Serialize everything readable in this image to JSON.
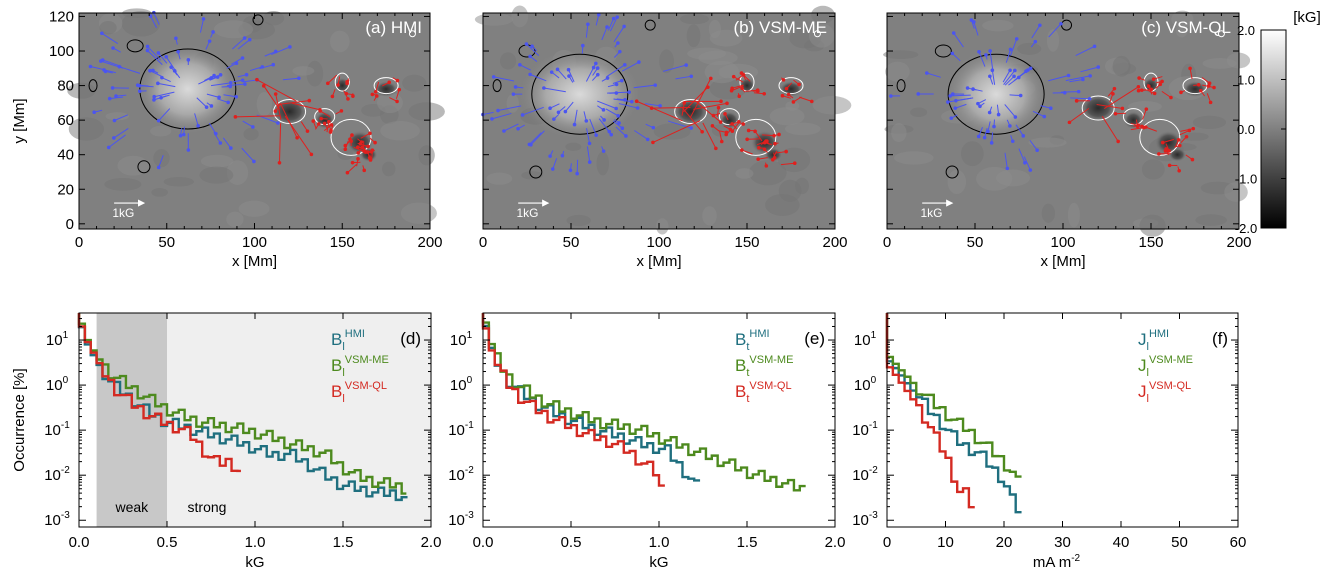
{
  "colors": {
    "hmi": "#1f6f7f",
    "vsm_me": "#4d8a1e",
    "vsm_ql": "#d42a22",
    "positive_arrows": "#e0201e",
    "negative_arrows": "#4b55f0",
    "background_field": "#808080",
    "weak_band": "#c8c8c8",
    "strong_band": "#efefef"
  },
  "chart_data": [
    {
      "type": "heatmap",
      "panel_label": "(a) HMI",
      "xlabel": "x [Mm]",
      "ylabel": "y [Mm]",
      "xlim": [
        0,
        200
      ],
      "ylim": [
        -3,
        122
      ],
      "x_ticks": [
        "0",
        "50",
        "100",
        "150",
        "200"
      ],
      "y_ticks": [
        "0",
        "20",
        "40",
        "60",
        "80",
        "100",
        "120"
      ],
      "scale_arrow_label": "1kG",
      "negative_region_center": [
        62,
        78
      ],
      "positive_region_center": [
        120,
        65
      ]
    },
    {
      "type": "heatmap",
      "panel_label": "(b) VSM-ME",
      "xlabel": "x [Mm]",
      "xlim": [
        0,
        200
      ],
      "ylim": [
        -3,
        122
      ],
      "x_ticks": [
        "0",
        "50",
        "100",
        "150",
        "200"
      ],
      "scale_arrow_label": "1kG",
      "negative_region_center": [
        55,
        75
      ],
      "positive_region_center": [
        118,
        65
      ]
    },
    {
      "type": "heatmap",
      "panel_label": "(c) VSM-QL",
      "xlabel": "x [Mm]",
      "xlim": [
        0,
        200
      ],
      "ylim": [
        -3,
        122
      ],
      "x_ticks": [
        "0",
        "50",
        "100",
        "150",
        "200"
      ],
      "scale_arrow_label": "1kG",
      "negative_region_center": [
        62,
        75
      ],
      "positive_region_center": [
        120,
        67
      ]
    },
    {
      "type": "colorbar",
      "unit": "[kG]",
      "range": [
        -2.0,
        2.0
      ],
      "ticks": [
        "2.0",
        "1.0",
        "0.0",
        "-1.0",
        "-2.0"
      ]
    },
    {
      "type": "line",
      "panel_label": "(d)",
      "xlabel": "kG",
      "ylabel": "Occurrence [%]",
      "xlim": [
        0,
        2.0
      ],
      "ylog": [
        -3.15,
        1.6
      ],
      "x_ticks": [
        "0.0",
        "0.5",
        "1.0",
        "1.5",
        "2.0"
      ],
      "y_ticks": [
        "10-3",
        "10-2",
        "10-1",
        "100",
        "101"
      ],
      "bands": [
        {
          "label": "weak",
          "from": 0.1,
          "to": 0.5
        },
        {
          "label": "strong",
          "from": 0.5,
          "to": 2.0
        }
      ],
      "legend": [
        {
          "base": "B",
          "sub": "l",
          "sup": "HMI"
        },
        {
          "base": "B",
          "sub": "l",
          "sup": "VSM-ME"
        },
        {
          "base": "B",
          "sub": "l",
          "sup": "VSM-QL"
        }
      ],
      "series": [
        {
          "x": [
            0.0,
            0.05,
            0.1,
            0.15,
            0.2,
            0.3,
            0.4,
            0.5,
            0.6,
            0.7,
            0.8,
            0.9,
            1.0,
            1.1,
            1.2,
            1.3,
            1.4,
            1.5,
            1.6,
            1.7,
            1.8,
            1.87
          ],
          "y": [
            30,
            8,
            3.5,
            1.8,
            1.0,
            0.5,
            0.25,
            0.15,
            0.12,
            0.09,
            0.07,
            0.055,
            0.04,
            0.028,
            0.03,
            0.018,
            0.01,
            0.006,
            0.005,
            0.004,
            0.004,
            0.003
          ]
        },
        {
          "x": [
            0.0,
            0.05,
            0.1,
            0.15,
            0.2,
            0.3,
            0.4,
            0.5,
            0.6,
            0.7,
            0.8,
            0.9,
            1.0,
            1.1,
            1.2,
            1.3,
            1.4,
            1.5,
            1.6,
            1.7,
            1.8,
            1.86
          ],
          "y": [
            35,
            10,
            4.5,
            2.5,
            1.6,
            0.9,
            0.5,
            0.3,
            0.2,
            0.15,
            0.13,
            0.11,
            0.09,
            0.07,
            0.05,
            0.04,
            0.03,
            0.015,
            0.009,
            0.007,
            0.006,
            0.005
          ]
        },
        {
          "x": [
            0.0,
            0.05,
            0.1,
            0.15,
            0.2,
            0.3,
            0.4,
            0.5,
            0.6,
            0.65,
            0.7,
            0.75,
            0.8,
            0.85,
            0.9,
            0.92
          ],
          "y": [
            30,
            9,
            4.0,
            1.8,
            0.9,
            0.4,
            0.22,
            0.14,
            0.1,
            0.07,
            0.04,
            0.025,
            0.018,
            0.02,
            0.015,
            0.012
          ]
        }
      ]
    },
    {
      "type": "line",
      "panel_label": "(e)",
      "xlabel": "kG",
      "xlim": [
        0,
        2.0
      ],
      "ylog": [
        -3.15,
        1.6
      ],
      "x_ticks": [
        "0.0",
        "0.5",
        "1.0",
        "1.5",
        "2.0"
      ],
      "y_ticks": [
        "10-3",
        "10-2",
        "10-1",
        "100",
        "101"
      ],
      "legend": [
        {
          "base": "B",
          "sub": "t",
          "sup": "HMI"
        },
        {
          "base": "B",
          "sub": "t",
          "sup": "VSM-ME"
        },
        {
          "base": "B",
          "sub": "t",
          "sup": "VSM-QL"
        }
      ],
      "series": [
        {
          "x": [
            0.0,
            0.03,
            0.06,
            0.1,
            0.15,
            0.2,
            0.3,
            0.4,
            0.5,
            0.6,
            0.7,
            0.8,
            0.9,
            1.0,
            1.05,
            1.1,
            1.15,
            1.2,
            1.25
          ],
          "y": [
            40,
            12,
            5,
            2.2,
            1.2,
            0.8,
            0.4,
            0.25,
            0.17,
            0.12,
            0.09,
            0.07,
            0.05,
            0.04,
            0.035,
            0.02,
            0.012,
            0.007,
            0.004
          ]
        },
        {
          "x": [
            0.0,
            0.03,
            0.06,
            0.1,
            0.15,
            0.2,
            0.3,
            0.4,
            0.5,
            0.6,
            0.7,
            0.8,
            0.9,
            1.0,
            1.1,
            1.2,
            1.3,
            1.4,
            1.5,
            1.6,
            1.7,
            1.8,
            1.84
          ],
          "y": [
            45,
            15,
            6,
            2.8,
            1.5,
            1.0,
            0.55,
            0.35,
            0.25,
            0.18,
            0.14,
            0.12,
            0.1,
            0.07,
            0.05,
            0.035,
            0.025,
            0.018,
            0.012,
            0.009,
            0.007,
            0.005,
            0.005
          ]
        },
        {
          "x": [
            0.0,
            0.03,
            0.06,
            0.1,
            0.15,
            0.2,
            0.3,
            0.4,
            0.5,
            0.6,
            0.7,
            0.8,
            0.85,
            0.9,
            0.95,
            1.0,
            1.04
          ],
          "y": [
            38,
            10,
            4.5,
            2.0,
            1.0,
            0.6,
            0.3,
            0.18,
            0.12,
            0.08,
            0.06,
            0.04,
            0.03,
            0.02,
            0.015,
            0.01,
            0.002
          ]
        }
      ]
    },
    {
      "type": "line",
      "panel_label": "(f)",
      "xlabel": "mA m-2",
      "xlim": [
        0,
        60
      ],
      "ylog": [
        -3.15,
        1.6
      ],
      "x_ticks": [
        "0",
        "10",
        "20",
        "30",
        "40",
        "50",
        "60"
      ],
      "y_ticks": [
        "10-3",
        "10-2",
        "10-1",
        "100",
        "101"
      ],
      "legend": [
        {
          "base": "J",
          "sub": "l",
          "sup": "HMI"
        },
        {
          "base": "J",
          "sub": "l",
          "sup": "VSM-ME"
        },
        {
          "base": "J",
          "sub": "l",
          "sup": "VSM-QL"
        }
      ],
      "series": [
        {
          "x": [
            0,
            2,
            4,
            6,
            8,
            10,
            12,
            14,
            16,
            18,
            20,
            21,
            22,
            23
          ],
          "y": [
            4,
            2.0,
            0.9,
            0.45,
            0.22,
            0.12,
            0.06,
            0.04,
            0.03,
            0.015,
            0.008,
            0.004,
            0.002,
            0.0015
          ]
        },
        {
          "x": [
            0,
            2,
            4,
            6,
            8,
            10,
            12,
            14,
            16,
            18,
            20,
            22,
            23
          ],
          "y": [
            5,
            2.5,
            1.3,
            0.7,
            0.4,
            0.25,
            0.15,
            0.1,
            0.06,
            0.035,
            0.02,
            0.01,
            0.005
          ]
        },
        {
          "x": [
            0,
            2,
            4,
            6,
            8,
            9,
            10,
            11,
            12,
            13,
            14,
            15
          ],
          "y": [
            3,
            1.4,
            0.6,
            0.25,
            0.09,
            0.05,
            0.03,
            0.015,
            0.006,
            0.003,
            0.005,
            0.001
          ]
        }
      ]
    }
  ]
}
